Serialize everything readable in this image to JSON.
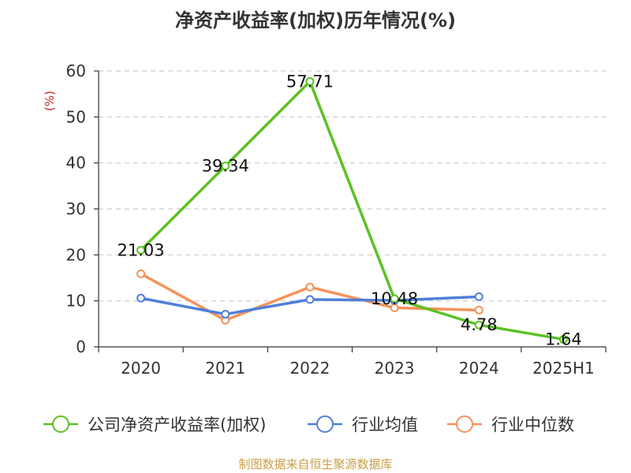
{
  "title": "净资产收益率(加权)历年情况(%)",
  "source": "制图数据来自恒生聚源数据库",
  "chart_data": {
    "type": "line",
    "title": "净资产收益率(加权)历年情况(%)",
    "ylabel": "(%)",
    "ylim": [
      0,
      60
    ],
    "yticks": [
      "0",
      "10",
      "20",
      "30",
      "40",
      "50",
      "60"
    ],
    "categories": [
      "2020",
      "2021",
      "2022",
      "2023",
      "2024",
      "2025H1"
    ],
    "legend_position": "bottom",
    "grid": true,
    "series": [
      {
        "name": "公司净资产收益率(加权)",
        "color": "#5ac224",
        "values": [
          21.03,
          39.34,
          57.71,
          10.48,
          4.78,
          1.64
        ],
        "labels": [
          "21.03",
          "39.34",
          "57.71",
          "10.48",
          "4.78",
          "1.64"
        ]
      },
      {
        "name": "行业均值",
        "color": "#4f7fd8",
        "values": [
          10.6,
          7.1,
          10.3,
          10.1,
          10.9,
          null
        ]
      },
      {
        "name": "行业中位数",
        "color": "#f5925a",
        "values": [
          15.9,
          5.8,
          13.0,
          8.5,
          8.0,
          null
        ]
      }
    ]
  }
}
